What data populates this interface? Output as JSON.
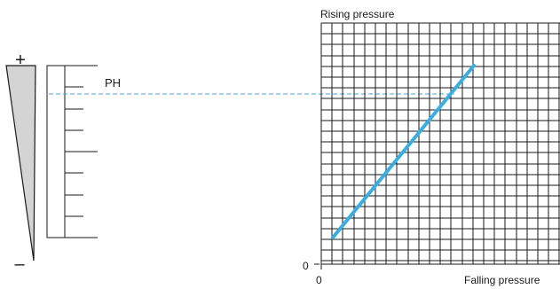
{
  "wedge": {
    "plus_symbol": "+",
    "minus_symbol": "–"
  },
  "scale": {
    "marker_label": "PH"
  },
  "graph": {
    "y_axis_label": "Rising pressure",
    "x_axis_label": "Falling pressure",
    "y_origin_label": "0",
    "x_origin_label": "0"
  },
  "colors": {
    "line": "#3aaede",
    "dashed_guide": "#3aaede",
    "grid": "#1a1a1a",
    "wedge_fill": "#d4d4d4",
    "ink": "#1a1a1a"
  }
}
